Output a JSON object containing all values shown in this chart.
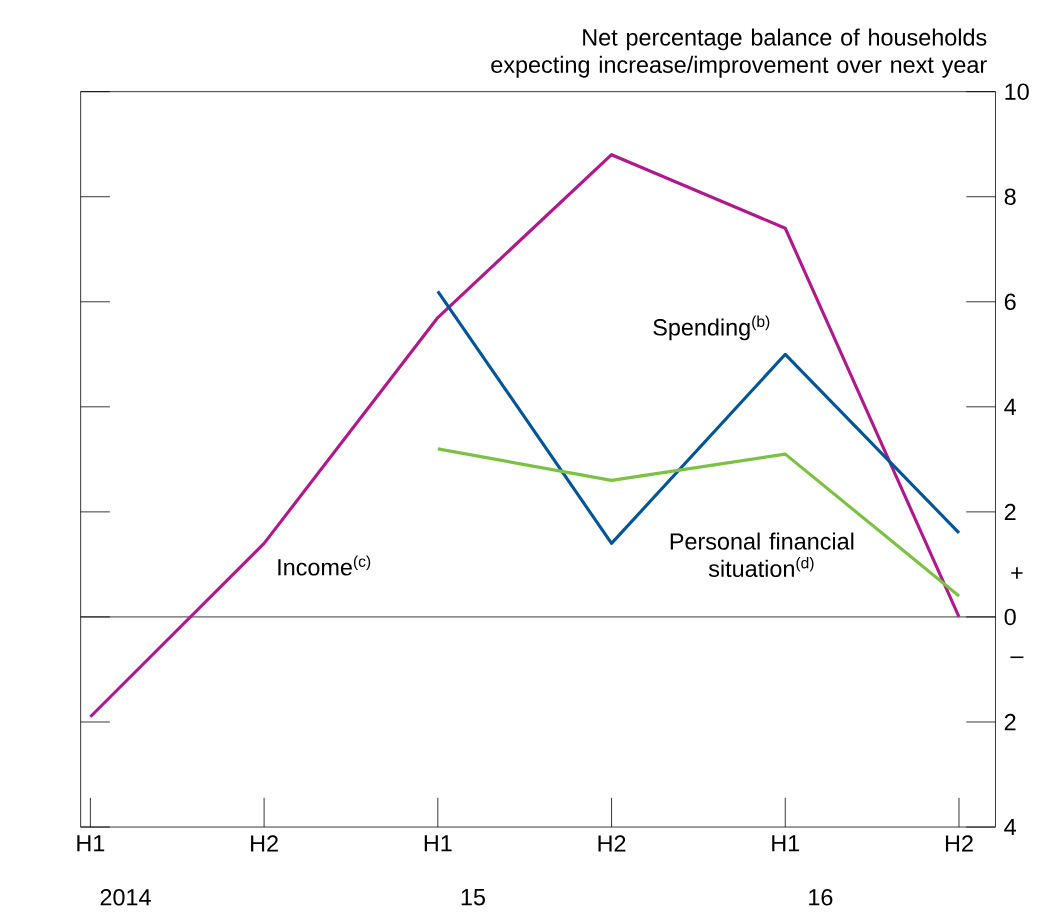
{
  "chart_data": {
    "type": "line",
    "ylabel": "Net percentage balance of households expecting increase/improvement over next year",
    "categories": [
      "H1",
      "H2",
      "H1",
      "H2",
      "H1",
      "H2"
    ],
    "series": [
      {
        "name": "Income$^{(c)}$",
        "color": "#b0198c",
        "values": [
          -1.9,
          1.4,
          5.7,
          8.8,
          7.4,
          0
        ]
      },
      {
        "name": "Spending$^{(b)}$",
        "color": "#005596",
        "values": [
          null,
          null,
          6.2,
          1.4,
          5.0,
          1.6
        ]
      },
      {
        "name": "Personal financial situation$^{(d)}$",
        "color": "#7cc143",
        "values": [
          null,
          null,
          3.2,
          2.6,
          3.1,
          0.4
        ]
      }
    ],
    "ylim": [
      -4,
      10
    ],
    "yticks": [
      10,
      8,
      6,
      4,
      2,
      0,
      {
        "value": -2,
        "label": "2"
      },
      {
        "value": -4,
        "label": "4"
      }
    ],
    "ref_lines": [
      {
        "axis": "y",
        "value": 0,
        "color": "#000000"
      }
    ],
    "annotations": [
      "2014",
      "15",
      "16",
      "+",
      "–"
    ],
    "grid": false,
    "legend": false,
    "marker": "none",
    "line_style": "solid"
  }
}
